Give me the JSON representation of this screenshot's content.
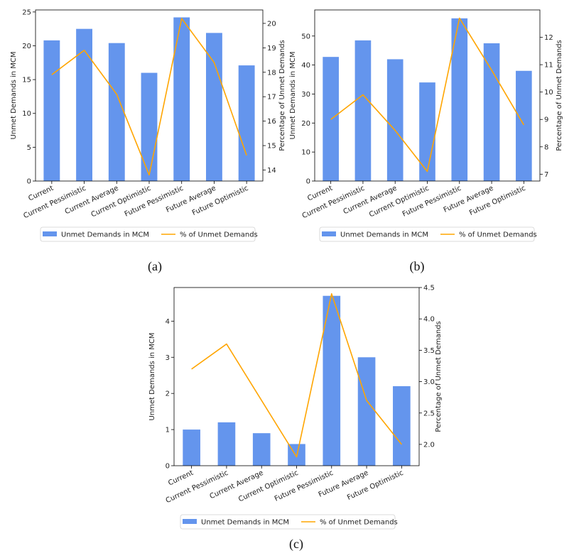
{
  "chart_data": [
    {
      "id": "a",
      "caption": "(a)",
      "type": "bar",
      "categories": [
        "Current",
        "Current Pessimistic",
        "Current Average",
        "Current Optimistic",
        "Future Pessimistic",
        "Future Average",
        "Future Optimistic"
      ],
      "series": [
        {
          "name": "Unmet Demands in MCM",
          "type": "bar",
          "axis": "left",
          "color": "#6495ED",
          "values": [
            20.8,
            22.5,
            20.4,
            16.0,
            24.2,
            21.9,
            17.1
          ]
        },
        {
          "name": "% of Unmet Demands",
          "type": "line",
          "axis": "right",
          "color": "#FFA500",
          "values": [
            17.9,
            18.9,
            17.1,
            13.8,
            20.2,
            18.4,
            14.6
          ]
        }
      ],
      "ylabel": "Unmet Demands in MCM",
      "y2label": "Percentage of Unmet Demands",
      "ylim": [
        0,
        25.3
      ],
      "y2lim": [
        13.55,
        20.55
      ],
      "yticks": [
        0,
        5,
        10,
        15,
        20,
        25
      ],
      "y2ticks": [
        14,
        15,
        16,
        17,
        18,
        19,
        20
      ],
      "legend": [
        "Unmet Demands in MCM",
        "% of Unmet Demands"
      ]
    },
    {
      "id": "b",
      "caption": "(b)",
      "type": "bar",
      "categories": [
        "Current",
        "Current Pessimistic",
        "Current Average",
        "Current Optimistic",
        "Future Pessimistic",
        "Future Average",
        "Future Optimistic"
      ],
      "series": [
        {
          "name": "Unmet Demands in MCM",
          "type": "bar",
          "axis": "left",
          "color": "#6495ED",
          "values": [
            42.8,
            48.5,
            42.0,
            34.0,
            56.1,
            47.5,
            38.0
          ]
        },
        {
          "name": "% of Unmet Demands",
          "type": "line",
          "axis": "right",
          "color": "#FFA500",
          "values": [
            9.0,
            9.9,
            8.6,
            7.1,
            12.7,
            10.8,
            8.8
          ]
        }
      ],
      "ylabel": "Unmet Demands in MCM",
      "y2label": "Percentage of Unmet Demands",
      "ylim": [
        0,
        59.0
      ],
      "y2lim": [
        6.75,
        13.0
      ],
      "yticks": [
        0,
        10,
        20,
        30,
        40,
        50
      ],
      "y2ticks": [
        7,
        8,
        9,
        10,
        11,
        12
      ],
      "legend": [
        "Unmet Demands in MCM",
        "% of Unmet Demands"
      ]
    },
    {
      "id": "c",
      "caption": "(c)",
      "type": "bar",
      "categories": [
        "Current",
        "Current Pessimistic",
        "Current Average",
        "Current Optimistic",
        "Future Pessimistic",
        "Future Average",
        "Future Optimistic"
      ],
      "series": [
        {
          "name": "Unmet Demands in MCM",
          "type": "bar",
          "axis": "left",
          "color": "#6495ED",
          "values": [
            1.0,
            1.2,
            0.9,
            0.6,
            4.7,
            3.0,
            2.2
          ]
        },
        {
          "name": "% of Unmet Demands",
          "type": "line",
          "axis": "right",
          "color": "#FFA500",
          "values": [
            3.2,
            3.6,
            2.7,
            1.8,
            4.4,
            2.7,
            2.0
          ]
        }
      ],
      "ylabel": "Unmet Demands in MCM",
      "y2label": "Percentage of Unmet Demands",
      "ylim": [
        0,
        4.93
      ],
      "y2lim": [
        1.66,
        4.5
      ],
      "yticks": [
        0,
        1,
        2,
        3,
        4
      ],
      "y2ticks": [
        2.0,
        2.5,
        3.0,
        3.5,
        4.0,
        4.5
      ],
      "legend": [
        "Unmet Demands in MCM",
        "% of Unmet Demands"
      ]
    }
  ]
}
